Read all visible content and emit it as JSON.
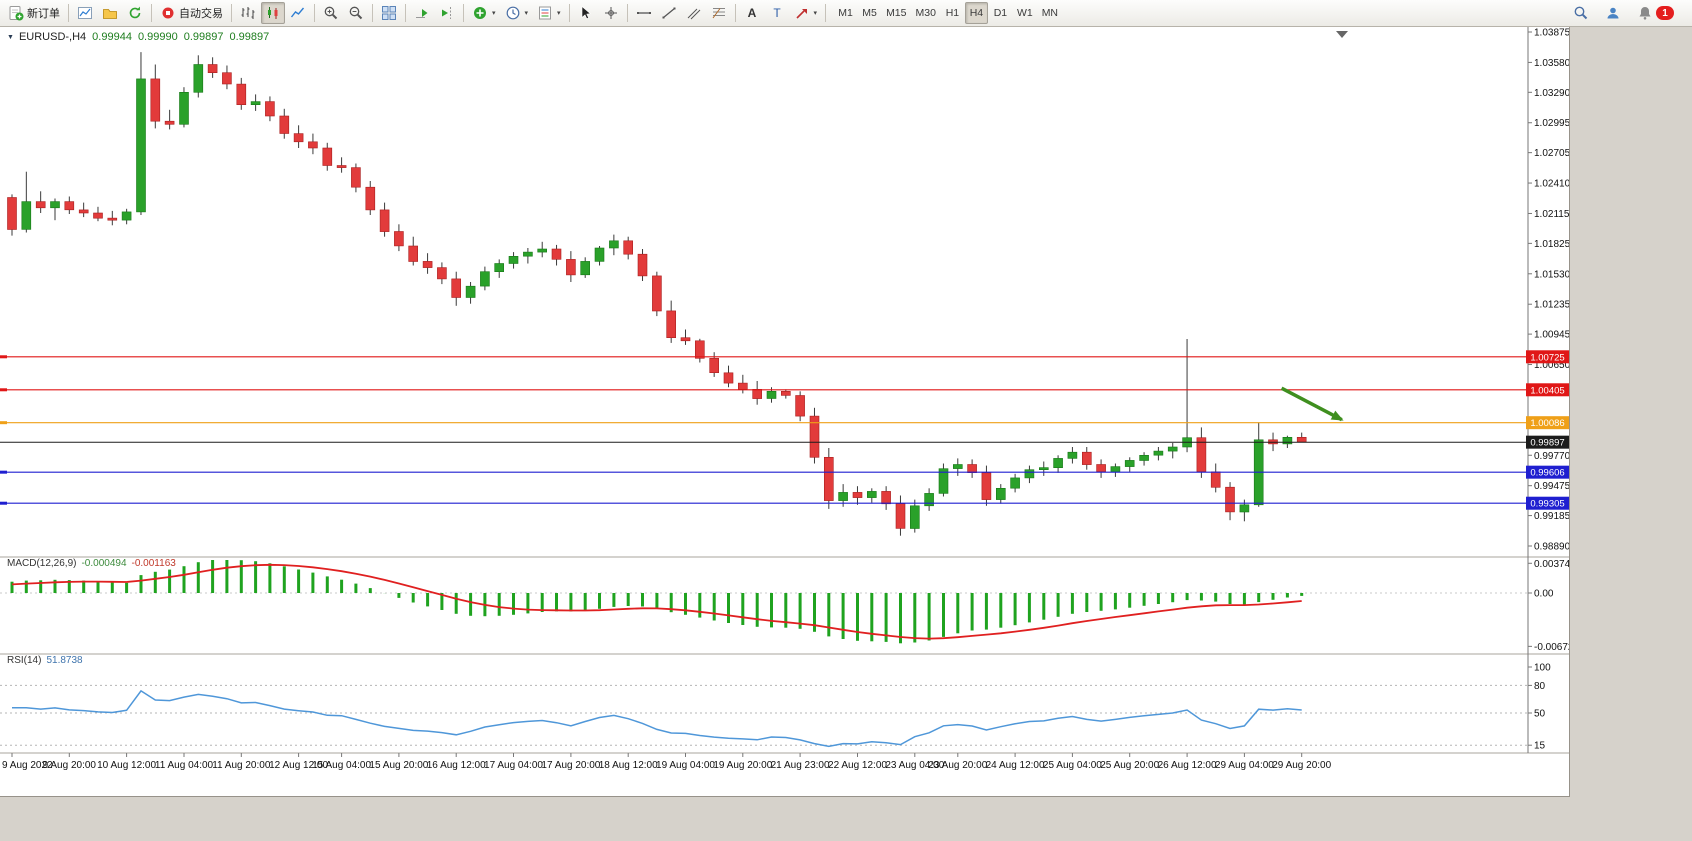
{
  "toolbar": {
    "new_order_label": "新订单",
    "autotrading_label": "自动交易",
    "timeframes": [
      "M1",
      "M5",
      "M15",
      "M30",
      "H1",
      "H4",
      "D1",
      "W1",
      "MN"
    ],
    "active_timeframe": "H4",
    "notification_count": "1",
    "icon_names": [
      "new-order",
      "new-chart",
      "profiles",
      "refresh",
      "autotrading",
      "ohlc-bars",
      "candlesticks",
      "line-chart",
      "zoom-in",
      "zoom-out",
      "tile-windows",
      "auto-scroll",
      "chart-shift",
      "indicators",
      "periods",
      "templates",
      "cursor",
      "crosshair",
      "horizontal-line",
      "trendline",
      "equidistant-channel",
      "fibonacci",
      "text",
      "text-label",
      "arrows",
      "search",
      "community",
      "notifications"
    ]
  },
  "chart": {
    "title": {
      "symbol_period": "EURUSD-,H4",
      "open": "0.99944",
      "high": "0.99990",
      "low": "0.99897",
      "close": "0.99897"
    }
  },
  "chart_data": {
    "type": "candlestick",
    "symbol": "EURUSD-",
    "timeframe": "H4",
    "price_range": {
      "max": 1.03875,
      "min": 0.9889
    },
    "candles": [
      [
        1.0227,
        1.023,
        1.019,
        1.0196
      ],
      [
        1.0196,
        1.0252,
        1.0193,
        1.0223
      ],
      [
        1.0223,
        1.0233,
        1.0212,
        1.0217
      ],
      [
        1.0217,
        1.0226,
        1.0205,
        1.0223
      ],
      [
        1.0223,
        1.0228,
        1.0211,
        1.0215
      ],
      [
        1.0215,
        1.0222,
        1.0208,
        1.0212
      ],
      [
        1.0212,
        1.0218,
        1.0204,
        1.0207
      ],
      [
        1.0207,
        1.0214,
        1.02,
        1.0205
      ],
      [
        1.0205,
        1.0216,
        1.0201,
        1.0213
      ],
      [
        1.0213,
        1.0368,
        1.021,
        1.0342
      ],
      [
        1.0342,
        1.0356,
        1.0294,
        1.0301
      ],
      [
        1.0301,
        1.0312,
        1.0293,
        1.0298
      ],
      [
        1.0298,
        1.0334,
        1.0295,
        1.0329
      ],
      [
        1.0329,
        1.03649,
        1.0324,
        1.0356
      ],
      [
        1.0356,
        1.0363,
        1.0343,
        1.0348
      ],
      [
        1.0348,
        1.0355,
        1.0332,
        1.0337
      ],
      [
        1.0337,
        1.0343,
        1.0312,
        1.0317
      ],
      [
        1.0317,
        1.0327,
        1.0311,
        1.032
      ],
      [
        1.032,
        1.0325,
        1.0301,
        1.0306
      ],
      [
        1.0306,
        1.0313,
        1.0284,
        1.0289
      ],
      [
        1.0289,
        1.0297,
        1.0275,
        1.0281
      ],
      [
        1.0281,
        1.0289,
        1.0269,
        1.0275
      ],
      [
        1.0275,
        1.028,
        1.0253,
        1.0258
      ],
      [
        1.0258,
        1.0266,
        1.0251,
        1.0256
      ],
      [
        1.0256,
        1.026,
        1.0232,
        1.0237
      ],
      [
        1.0237,
        1.0243,
        1.021,
        1.0215
      ],
      [
        1.0215,
        1.0222,
        1.0189,
        1.0194
      ],
      [
        1.0194,
        1.0201,
        1.0175,
        1.018
      ],
      [
        1.018,
        1.0189,
        1.0161,
        1.0165
      ],
      [
        1.0165,
        1.0173,
        1.0153,
        1.0159
      ],
      [
        1.0159,
        1.0164,
        1.0143,
        1.0148
      ],
      [
        1.0148,
        1.0155,
        1.0122,
        1.013
      ],
      [
        1.013,
        1.0145,
        1.0124,
        1.0141
      ],
      [
        1.0141,
        1.016,
        1.0137,
        1.0155
      ],
      [
        1.0155,
        1.0167,
        1.0149,
        1.0163
      ],
      [
        1.0163,
        1.0174,
        1.0158,
        1.017
      ],
      [
        1.017,
        1.0178,
        1.0163,
        1.0174
      ],
      [
        1.0174,
        1.0184,
        1.0169,
        1.0177
      ],
      [
        1.0177,
        1.0181,
        1.0161,
        1.0167
      ],
      [
        1.0167,
        1.0175,
        1.0145,
        1.0152
      ],
      [
        1.0152,
        1.0169,
        1.0149,
        1.0165
      ],
      [
        1.0165,
        1.018,
        1.0161,
        1.0178
      ],
      [
        1.0178,
        1.0191,
        1.0171,
        1.0185
      ],
      [
        1.0185,
        1.0189,
        1.0167,
        1.0172
      ],
      [
        1.0172,
        1.0177,
        1.0146,
        1.0151
      ],
      [
        1.0151,
        1.0155,
        1.0112,
        1.0117
      ],
      [
        1.0117,
        1.0127,
        1.0086,
        1.0091
      ],
      [
        1.0091,
        1.0099,
        1.0084,
        1.0088
      ],
      [
        1.0088,
        1.009,
        1.0067,
        1.0071
      ],
      [
        1.0071,
        1.0077,
        1.0053,
        1.0057
      ],
      [
        1.0057,
        1.0064,
        1.0043,
        1.0047
      ],
      [
        1.0047,
        1.0055,
        1.0037,
        1.0041
      ],
      [
        1.0041,
        1.0049,
        1.0026,
        1.0032
      ],
      [
        1.0032,
        1.0043,
        1.0028,
        1.0039
      ],
      [
        1.0039,
        1.0041,
        1.0032,
        1.0035
      ],
      [
        1.0035,
        1.0039,
        1.001,
        1.0015
      ],
      [
        1.0015,
        1.0023,
        0.9969,
        0.9975
      ],
      [
        0.9975,
        0.9984,
        0.9925,
        0.9933
      ],
      [
        0.9933,
        0.9949,
        0.9927,
        0.9941
      ],
      [
        0.9941,
        0.9947,
        0.9929,
        0.9936
      ],
      [
        0.9936,
        0.9945,
        0.9931,
        0.9942
      ],
      [
        0.9942,
        0.9947,
        0.9924,
        0.993
      ],
      [
        0.993,
        0.9938,
        0.9899,
        0.9906
      ],
      [
        0.9906,
        0.9934,
        0.9902,
        0.9928
      ],
      [
        0.9928,
        0.9945,
        0.9923,
        0.994
      ],
      [
        0.994,
        0.9969,
        0.9937,
        0.9964
      ],
      [
        0.9964,
        0.9974,
        0.9957,
        0.9968
      ],
      [
        0.9968,
        0.9973,
        0.9955,
        0.996
      ],
      [
        0.996,
        0.9967,
        0.9928,
        0.9934
      ],
      [
        0.9934,
        0.9949,
        0.993,
        0.9945
      ],
      [
        0.9945,
        0.9959,
        0.9941,
        0.9955
      ],
      [
        0.9955,
        0.9967,
        0.995,
        0.9963
      ],
      [
        0.9963,
        0.9971,
        0.9957,
        0.9965
      ],
      [
        0.9965,
        0.9977,
        0.996,
        0.9974
      ],
      [
        0.9974,
        0.9985,
        0.9969,
        0.998
      ],
      [
        0.998,
        0.9985,
        0.9963,
        0.9968
      ],
      [
        0.9968,
        0.9973,
        0.9955,
        0.9961
      ],
      [
        0.9961,
        0.9969,
        0.9956,
        0.9966
      ],
      [
        0.9966,
        0.9975,
        0.9961,
        0.9972
      ],
      [
        0.9972,
        0.998,
        0.9967,
        0.9977
      ],
      [
        0.9977,
        0.9985,
        0.9972,
        0.9981
      ],
      [
        0.9981,
        0.9989,
        0.9974,
        0.9985
      ],
      [
        0.9985,
        1.00898,
        0.998,
        0.9994
      ],
      [
        0.9994,
        1.0004,
        0.9955,
        0.9961
      ],
      [
        0.9961,
        0.9969,
        0.9941,
        0.9946
      ],
      [
        0.9946,
        0.9951,
        0.9914,
        0.9922
      ],
      [
        0.9922,
        0.9934,
        0.9913,
        0.9929
      ],
      [
        0.9929,
        1.0009,
        0.9927,
        0.9992
      ],
      [
        0.9992,
        0.9999,
        0.9981,
        0.9988
      ],
      [
        0.9988,
        0.9996,
        0.9984,
        0.99944
      ],
      [
        0.99944,
        0.9999,
        0.99897,
        0.99897
      ]
    ],
    "time_labels": [
      {
        "i": 0,
        "t": "9 Aug 2022"
      },
      {
        "i": 4,
        "t": "9 Aug 20:00"
      },
      {
        "i": 8,
        "t": "10 Aug 12:00"
      },
      {
        "i": 12,
        "t": "11 Aug 04:00"
      },
      {
        "i": 16,
        "t": "11 Aug 20:00"
      },
      {
        "i": 20,
        "t": "12 Aug 12:00"
      },
      {
        "i": 23,
        "t": "15 Aug 04:00"
      },
      {
        "i": 27,
        "t": "15 Aug 20:00"
      },
      {
        "i": 31,
        "t": "16 Aug 12:00"
      },
      {
        "i": 35,
        "t": "17 Aug 04:00"
      },
      {
        "i": 39,
        "t": "17 Aug 20:00"
      },
      {
        "i": 43,
        "t": "18 Aug 12:00"
      },
      {
        "i": 47,
        "t": "19 Aug 04:00"
      },
      {
        "i": 51,
        "t": "19 Aug 20:00"
      },
      {
        "i": 55,
        "t": "21 Aug 23:00"
      },
      {
        "i": 59,
        "t": "22 Aug 12:00"
      },
      {
        "i": 63,
        "t": "23 Aug 04:00"
      },
      {
        "i": 66,
        "t": "23 Aug 20:00"
      },
      {
        "i": 70,
        "t": "24 Aug 12:00"
      },
      {
        "i": 74,
        "t": "25 Aug 04:00"
      },
      {
        "i": 78,
        "t": "25 Aug 20:00"
      },
      {
        "i": 82,
        "t": "26 Aug 12:00"
      },
      {
        "i": 86,
        "t": "29 Aug 04:00"
      },
      {
        "i": 90,
        "t": "29 Aug 20:00"
      }
    ],
    "price_ticks": [
      {
        "v": 1.03875,
        "t": "1.03875"
      },
      {
        "v": 1.0358,
        "t": "1.03580"
      },
      {
        "v": 1.0329,
        "t": "1.03290"
      },
      {
        "v": 1.02995,
        "t": "1.02995"
      },
      {
        "v": 1.02705,
        "t": "1.02705"
      },
      {
        "v": 1.0241,
        "t": "1.02410"
      },
      {
        "v": 1.02115,
        "t": "1.02115"
      },
      {
        "v": 1.01825,
        "t": "1.01825"
      },
      {
        "v": 1.0153,
        "t": "1.01530"
      },
      {
        "v": 1.01235,
        "t": "1.01235"
      },
      {
        "v": 1.00945,
        "t": "1.00945"
      },
      {
        "v": 1.0065,
        "t": "1.00650"
      },
      {
        "v": 0.9977,
        "t": "0.99770"
      },
      {
        "v": 0.99475,
        "t": "0.99475"
      },
      {
        "v": 0.99185,
        "t": "0.99185"
      },
      {
        "v": 0.9889,
        "t": "0.98890"
      }
    ],
    "hlines": [
      {
        "price": 1.00725,
        "label": "1.00725",
        "color": "#e01717"
      },
      {
        "price": 1.00405,
        "label": "1.00405",
        "color": "#e01717"
      },
      {
        "price": 1.00086,
        "label": "1.00086",
        "color": "#efa018"
      },
      {
        "price": 0.99606,
        "label": "0.99606",
        "color": "#1f1fd0"
      },
      {
        "price": 0.99305,
        "label": "0.99305",
        "color": "#1f1fd0"
      }
    ],
    "current_price": {
      "price": 0.99897,
      "label": "0.99897",
      "color": "#1c1c1c"
    },
    "indicators": {
      "macd": {
        "label": "MACD(12,26,9)",
        "value": "-0.000494",
        "signal_value": "-0.001163",
        "ticks": [
          {
            "v": 0.003744,
            "t": "0.003744"
          },
          {
            "v": 0,
            "t": "0.00"
          },
          {
            "v": -0.006723,
            "t": "-0.006723"
          }
        ]
      },
      "rsi": {
        "label": "RSI(14)",
        "value": "51.8738",
        "ticks": [
          {
            "v": 100,
            "t": "100"
          },
          {
            "v": 80,
            "t": "80"
          },
          {
            "v": 50,
            "t": "50"
          },
          {
            "v": 15,
            "t": "15"
          }
        ],
        "levels": [
          80,
          50,
          15
        ]
      }
    },
    "annotations": [
      {
        "type": "arrow",
        "from": {
          "i": 88.6,
          "price": 1.0042
        },
        "to": {
          "i": 92.8,
          "price": 1.00115
        }
      }
    ],
    "colors": {
      "bull": "#2aa12a",
      "bull_border": "#187818",
      "bear": "#e23b3b",
      "bear_border": "#a81f1f",
      "wick": "#3a3a3a",
      "macd_hist": "#1fa31f",
      "macd_signal": "#e02020",
      "rsi_line": "#4f97d9",
      "axis_text": "#111111",
      "separator": "#a9a59c",
      "arrow": "#3f8f1f"
    }
  }
}
